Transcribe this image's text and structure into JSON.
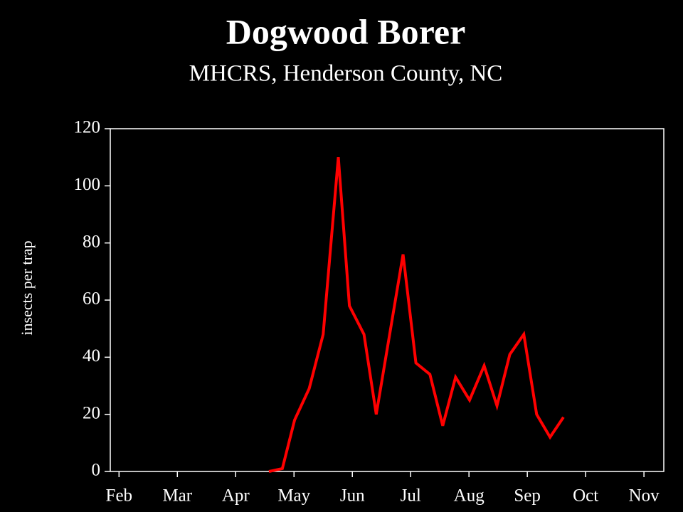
{
  "chart_data": {
    "type": "line",
    "title": "Dogwood Borer",
    "subtitle": "MHCRS, Henderson County, NC",
    "y_label": "insects per trap",
    "x": [
      2.57,
      2.8,
      3.01,
      3.26,
      3.5,
      3.76,
      3.95,
      4.2,
      4.41,
      4.87,
      5.09,
      5.33,
      5.55,
      5.77,
      6.01,
      6.26,
      6.48,
      6.7,
      6.94,
      7.16,
      7.39,
      7.62
    ],
    "series": [
      {
        "name": "Dogwood Borer",
        "color": "#ff0000",
        "values": [
          0,
          1,
          18,
          29,
          48,
          110,
          58,
          48,
          20,
          76,
          38,
          34,
          16,
          33,
          25,
          37,
          23,
          41,
          48,
          20,
          12,
          19
        ]
      }
    ],
    "xlim": [
      -0.15,
      9.34
    ],
    "xticks": [
      {
        "value": 0,
        "label": "Feb"
      },
      {
        "value": 1,
        "label": "Mar"
      },
      {
        "value": 2,
        "label": "Apr"
      },
      {
        "value": 3,
        "label": "May"
      },
      {
        "value": 4,
        "label": "Jun"
      },
      {
        "value": 5,
        "label": "Jul"
      },
      {
        "value": 6,
        "label": "Aug"
      },
      {
        "value": 7,
        "label": "Sep"
      },
      {
        "value": 8,
        "label": "Oct"
      },
      {
        "value": 9,
        "label": "Nov"
      }
    ],
    "ylim": [
      0,
      120
    ],
    "yticks": [
      0,
      20,
      40,
      60,
      80,
      100,
      120
    ],
    "grid": false
  }
}
